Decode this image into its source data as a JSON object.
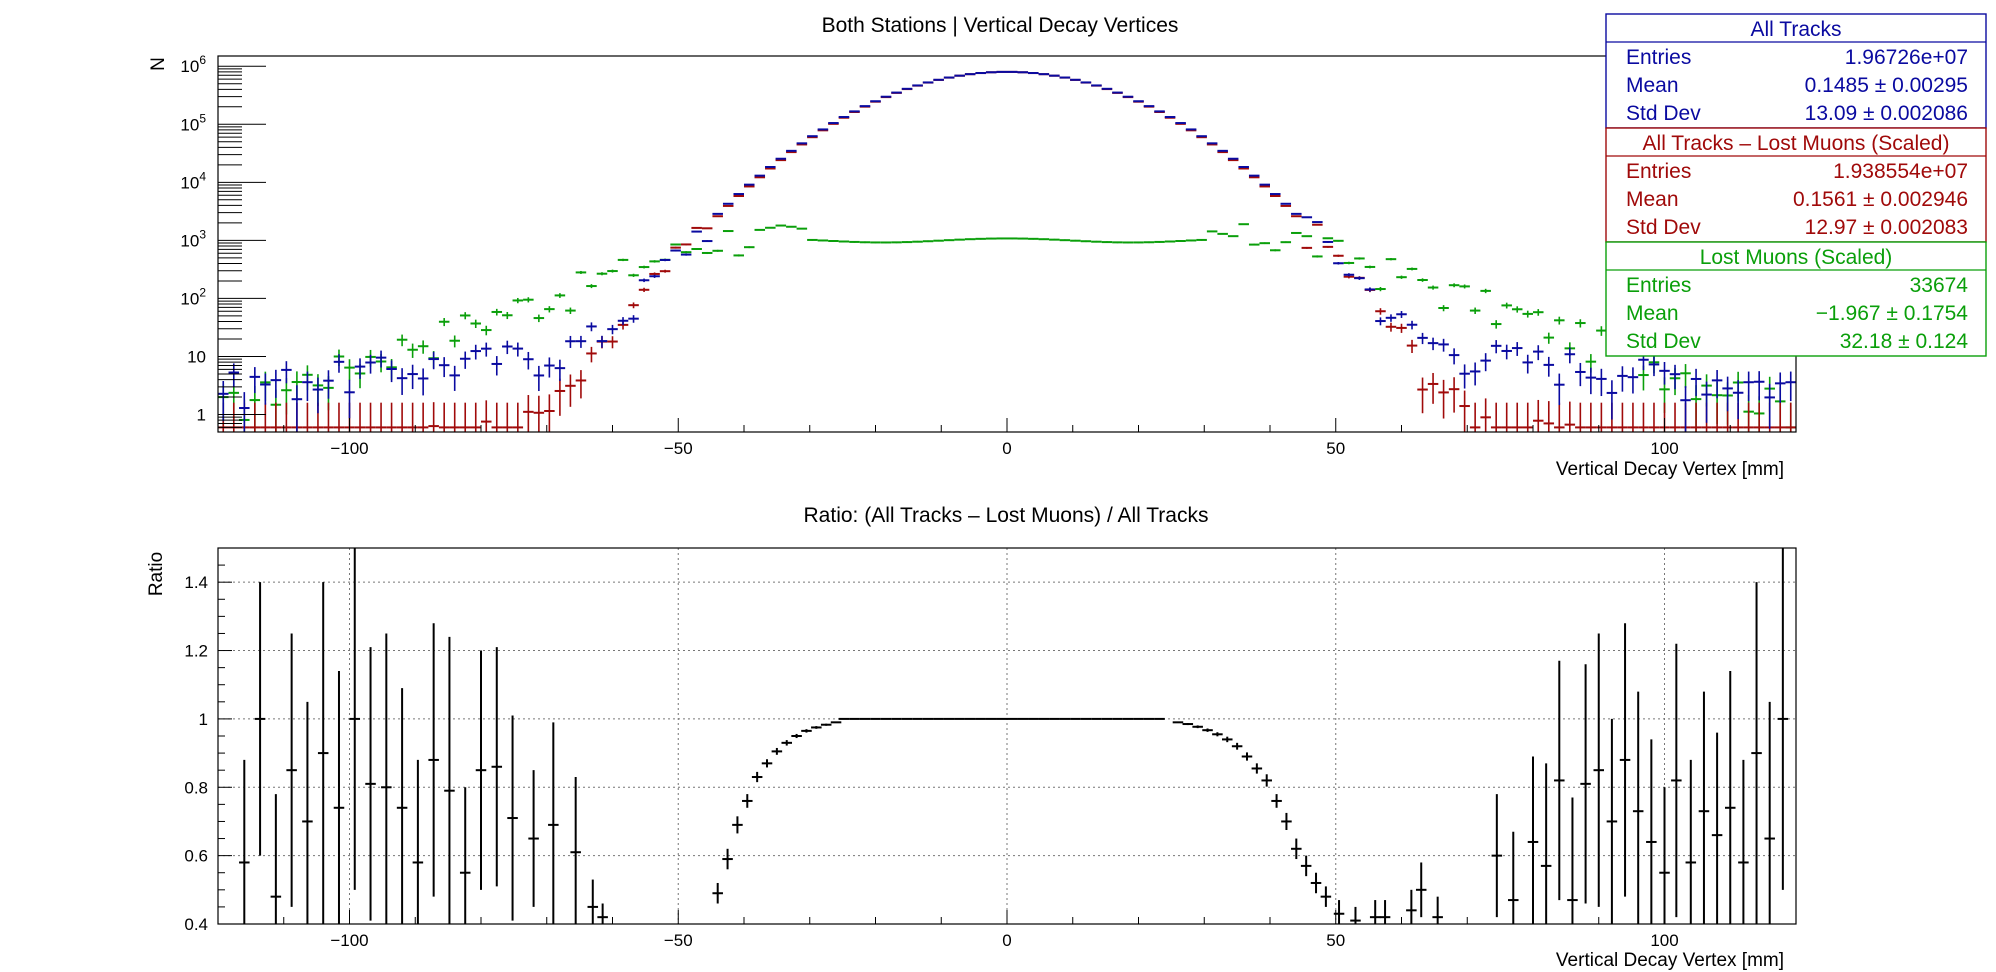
{
  "colors": {
    "all_tracks": "#0a0aa0",
    "all_minus_lost": "#a00a0a",
    "lost_muons": "#0a9f0a",
    "ratio": "#000000"
  },
  "chart_data": [
    {
      "id": "top",
      "type": "histogram",
      "title": "Both Stations | Vertical Decay Vertices",
      "xlabel": "Vertical Decay Vertex [mm]",
      "ylabel": "N",
      "xlim": [
        -120,
        120
      ],
      "ylim": [
        0.5,
        1500000
      ],
      "yscale": "log",
      "grid": false,
      "bin_width": 1.6,
      "xticks": [
        "-100",
        "-50",
        "0",
        "50",
        "100"
      ],
      "yticks": [
        {
          "value": 1,
          "label": "1"
        },
        {
          "value": 10,
          "label": "10"
        },
        {
          "value": 100,
          "label": "10",
          "sup": "2"
        },
        {
          "value": 1000,
          "label": "10",
          "sup": "3"
        },
        {
          "value": 10000,
          "label": "10",
          "sup": "4"
        },
        {
          "value": 100000,
          "label": "10",
          "sup": "5"
        },
        {
          "value": 1000000,
          "label": "10",
          "sup": "6"
        }
      ],
      "series": [
        {
          "name": "All Tracks",
          "color": "#0a0aa0",
          "shape": {
            "peak": 800000,
            "sigma": 13.1,
            "floor": 10,
            "floor_width": 38
          }
        },
        {
          "name": "All Tracks  – Lost Muons (Scaled)",
          "color": "#a00a0a",
          "shape": {
            "peak": 800000,
            "sigma": 13.0,
            "floor": 0.8,
            "floor_width": 30
          }
        },
        {
          "name": "Lost Muons (Scaled)",
          "color": "#0a9f0a",
          "shape": {
            "plateau": 1000,
            "plateau_edge": 44,
            "tail_width": 28,
            "floor": 1
          }
        }
      ],
      "legend": {
        "position": "top-right",
        "boxes": [
          {
            "header": "All Tracks",
            "color": "#0a0aa0",
            "rows": [
              {
                "label": "Entries",
                "value": "1.96726e+07"
              },
              {
                "label": "Mean",
                "value": "0.1485 ± 0.00295"
              },
              {
                "label": "Std Dev",
                "value": "13.09 ± 0.002086"
              }
            ]
          },
          {
            "header": "All Tracks  – Lost Muons (Scaled)",
            "color": "#a00a0a",
            "rows": [
              {
                "label": "Entries",
                "value": "1.938554e+07"
              },
              {
                "label": "Mean",
                "value": "0.1561 ± 0.002946"
              },
              {
                "label": "Std Dev",
                "value": "12.97 ± 0.002083"
              }
            ]
          },
          {
            "header": "Lost Muons (Scaled)",
            "color": "#0a9f0a",
            "rows": [
              {
                "label": "Entries",
                "value": "33674"
              },
              {
                "label": "Mean",
                "value": "−1.967 ± 0.1754"
              },
              {
                "label": "Std Dev",
                "value": "32.18 ±  0.124"
              }
            ]
          }
        ]
      }
    },
    {
      "id": "bottom",
      "type": "histogram",
      "title": "Ratio: (All Tracks  – Lost Muons) / All Tracks",
      "xlabel": "Vertical Decay Vertex [mm]",
      "ylabel": "Ratio",
      "xlim": [
        -120,
        120
      ],
      "ylim": [
        0.4,
        1.5
      ],
      "yscale": "linear",
      "grid": true,
      "bin_width": 1.6,
      "xticks": [
        "-100",
        "-50",
        "0",
        "50",
        "100"
      ],
      "xtick_values": [
        -100,
        -50,
        0,
        50,
        100
      ],
      "yticks": [
        "0.4",
        "0.6",
        "0.8",
        "1",
        "1.2",
        "1.4"
      ],
      "ytick_values": [
        0.4,
        0.6,
        0.8,
        1.0,
        1.2,
        1.4
      ],
      "series": [
        {
          "name": "",
          "color": "#000000",
          "points": [
            [
              -116.0,
              0.58,
              0.3
            ],
            [
              -113.6,
              1.0,
              0.4
            ],
            [
              -111.2,
              0.48,
              0.3
            ],
            [
              -108.8,
              0.85,
              0.4
            ],
            [
              -106.4,
              0.7,
              0.35
            ],
            [
              -104.0,
              0.9,
              0.5
            ],
            [
              -101.6,
              0.74,
              0.4
            ],
            [
              -99.2,
              1.0,
              0.5
            ],
            [
              -96.8,
              0.81,
              0.4
            ],
            [
              -94.4,
              0.8,
              0.45
            ],
            [
              -92.0,
              0.74,
              0.35
            ],
            [
              -89.6,
              0.58,
              0.3
            ],
            [
              -87.2,
              0.88,
              0.4
            ],
            [
              -84.8,
              0.79,
              0.45
            ],
            [
              -82.4,
              0.55,
              0.25
            ],
            [
              -80.0,
              0.85,
              0.35
            ],
            [
              -77.6,
              0.86,
              0.35
            ],
            [
              -75.2,
              0.71,
              0.3
            ],
            [
              -72.0,
              0.65,
              0.2
            ],
            [
              -69.0,
              0.69,
              0.3
            ],
            [
              -65.6,
              0.61,
              0.22
            ],
            [
              -63.0,
              0.45,
              0.08
            ],
            [
              -61.5,
              0.42,
              0.04
            ],
            [
              -44.0,
              0.49,
              0.03
            ],
            [
              -42.5,
              0.59,
              0.03
            ],
            [
              -41.0,
              0.69,
              0.025
            ],
            [
              -39.5,
              0.76,
              0.02
            ],
            [
              -38.0,
              0.83,
              0.015
            ],
            [
              -36.5,
              0.87,
              0.012
            ],
            [
              -35.0,
              0.905,
              0.01
            ],
            [
              -33.5,
              0.93,
              0.008
            ],
            [
              -32.0,
              0.95,
              0.006
            ],
            [
              -30.5,
              0.965,
              0.005
            ],
            [
              -29.0,
              0.975,
              0.004
            ],
            [
              -27.5,
              0.983,
              0.003
            ],
            [
              -26.0,
              0.99,
              0.002
            ],
            [
              26.0,
              0.99,
              0.002
            ],
            [
              27.5,
              0.985,
              0.003
            ],
            [
              29.0,
              0.977,
              0.004
            ],
            [
              30.5,
              0.967,
              0.005
            ],
            [
              32.0,
              0.955,
              0.006
            ],
            [
              33.5,
              0.94,
              0.008
            ],
            [
              35.0,
              0.92,
              0.01
            ],
            [
              36.5,
              0.89,
              0.012
            ],
            [
              38.0,
              0.855,
              0.015
            ],
            [
              39.5,
              0.82,
              0.018
            ],
            [
              41.0,
              0.76,
              0.02
            ],
            [
              42.5,
              0.7,
              0.025
            ],
            [
              44.0,
              0.62,
              0.03
            ],
            [
              45.5,
              0.57,
              0.03
            ],
            [
              47.0,
              0.52,
              0.03
            ],
            [
              48.5,
              0.48,
              0.03
            ],
            [
              50.5,
              0.43,
              0.04
            ],
            [
              53.0,
              0.41,
              0.04
            ],
            [
              56.0,
              0.42,
              0.05
            ],
            [
              57.5,
              0.42,
              0.05
            ],
            [
              61.5,
              0.44,
              0.06
            ],
            [
              63.0,
              0.5,
              0.08
            ],
            [
              65.5,
              0.42,
              0.06
            ],
            [
              74.5,
              0.6,
              0.18
            ],
            [
              77.0,
              0.47,
              0.2
            ],
            [
              80.0,
              0.64,
              0.25
            ],
            [
              82.0,
              0.57,
              0.3
            ],
            [
              84.0,
              0.82,
              0.35
            ],
            [
              86.0,
              0.47,
              0.3
            ],
            [
              88.0,
              0.81,
              0.35
            ],
            [
              90.0,
              0.85,
              0.4
            ],
            [
              92.0,
              0.7,
              0.3
            ],
            [
              94.0,
              0.88,
              0.4
            ],
            [
              96.0,
              0.73,
              0.35
            ],
            [
              98.0,
              0.64,
              0.3
            ],
            [
              100.0,
              0.55,
              0.25
            ],
            [
              101.8,
              0.82,
              0.4
            ],
            [
              104.0,
              0.58,
              0.3
            ],
            [
              106.0,
              0.73,
              0.35
            ],
            [
              108.0,
              0.66,
              0.3
            ],
            [
              110.0,
              0.74,
              0.4
            ],
            [
              112.0,
              0.58,
              0.3
            ],
            [
              114.0,
              0.9,
              0.5
            ],
            [
              116.0,
              0.65,
              0.4
            ],
            [
              118.0,
              1.0,
              0.5
            ]
          ]
        }
      ]
    }
  ]
}
